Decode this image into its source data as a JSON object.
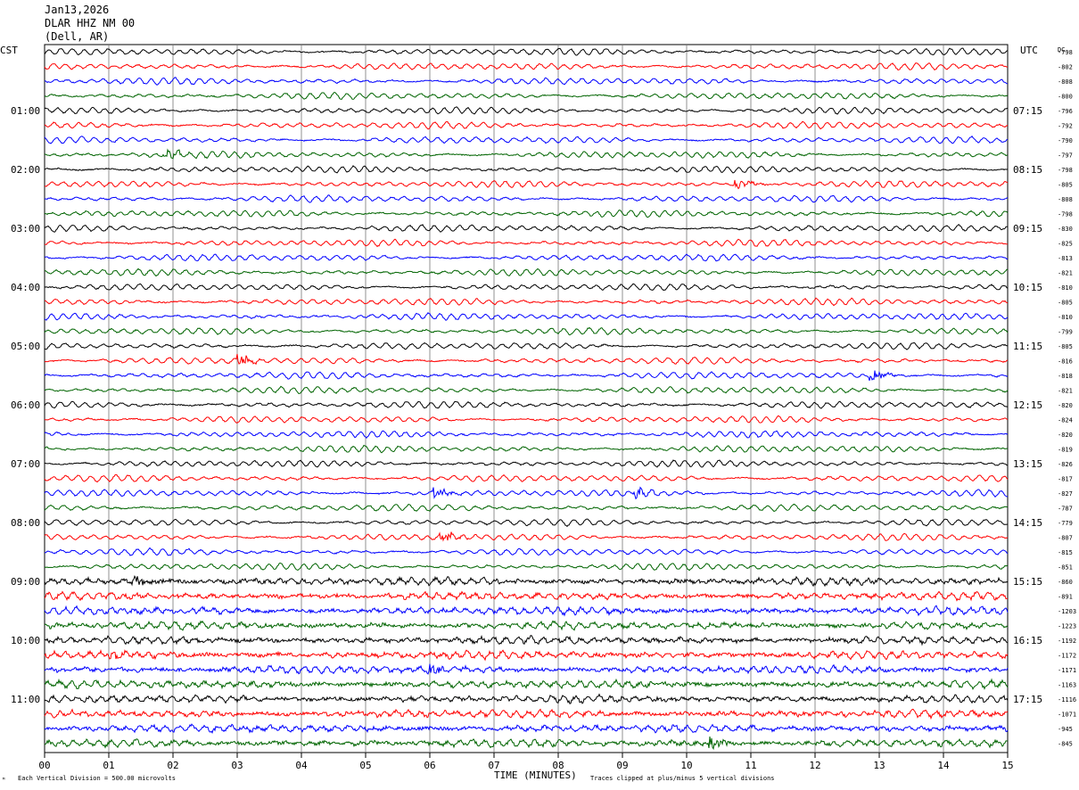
{
  "header": {
    "date": "Jan13,2026",
    "station": "DLAR HHZ NM 00",
    "location": "(Dell, AR)"
  },
  "left_tz": "CST",
  "right_tz": "UTC",
  "dc_header": "DC",
  "footer": {
    "scale": "Each Vertical Division =  500.00 microvolts",
    "xlabel": "TIME (MINUTES)",
    "clip_note": "Traces clipped at plus/minus 5 vertical divisions"
  },
  "chart_data": {
    "type": "line",
    "subtype": "helicorder",
    "xlabel": "TIME (MINUTES)",
    "xlim": [
      0,
      15
    ],
    "x_ticks": [
      "00",
      "01",
      "02",
      "03",
      "04",
      "05",
      "06",
      "07",
      "08",
      "09",
      "10",
      "11",
      "12",
      "13",
      "14",
      "15"
    ],
    "minutes_per_line": 15,
    "trace_colors": [
      "#000000",
      "#ff0000",
      "#0000ff",
      "#006400"
    ],
    "left_labels": [
      "01:00",
      "02:00",
      "03:00",
      "04:00",
      "05:00",
      "06:00",
      "07:00",
      "08:00",
      "09:00",
      "10:00",
      "11:00"
    ],
    "right_labels": [
      "07:15",
      "08:15",
      "09:15",
      "10:15",
      "11:15",
      "12:15",
      "13:15",
      "14:15",
      "15:15",
      "16:15",
      "17:15"
    ],
    "dc_offsets": [
      "-798",
      "-802",
      "-808",
      "-800",
      "-796",
      "-792",
      "-790",
      "-797",
      "-798",
      "-805",
      "-808",
      "-798",
      "-830",
      "-825",
      "-813",
      "-821",
      "-810",
      "-805",
      "-810",
      "-799",
      "-805",
      "-816",
      "-818",
      "-821",
      "-820",
      "-824",
      "-820",
      "-819",
      "-826",
      "-817",
      "-827",
      "-787",
      "-779",
      "-807",
      "-815",
      "-851",
      "-860",
      "-891",
      "-1203",
      "-1223",
      "-1192",
      "-1172",
      "-1171",
      "-1163",
      "-1116",
      "-1071",
      "-945",
      "-845"
    ],
    "events": [
      {
        "line": 7,
        "minute": 1.9
      },
      {
        "line": 9,
        "minute": 10.8
      },
      {
        "line": 21,
        "minute": 3.05
      },
      {
        "line": 22,
        "minute": 12.9
      },
      {
        "line": 30,
        "minute": 6.1
      },
      {
        "line": 30,
        "minute": 9.2
      },
      {
        "line": 33,
        "minute": 6.2
      },
      {
        "line": 36,
        "minute": 1.4
      },
      {
        "line": 41,
        "minute": 1.0
      },
      {
        "line": 42,
        "minute": 6.0
      },
      {
        "line": 47,
        "minute": 10.4
      }
    ]
  }
}
